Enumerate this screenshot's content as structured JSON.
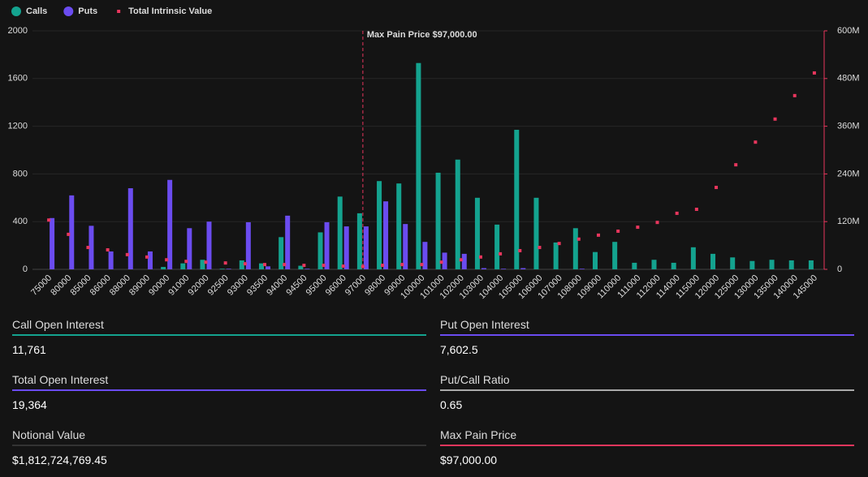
{
  "chart_data": {
    "type": "bar",
    "legend": "top-left",
    "grid": true,
    "categories": [
      "75000",
      "80000",
      "85000",
      "86000",
      "88000",
      "89000",
      "90000",
      "91000",
      "92000",
      "92500",
      "93000",
      "93500",
      "94000",
      "94500",
      "95000",
      "96000",
      "97000",
      "98000",
      "99000",
      "100000",
      "101000",
      "102000",
      "103000",
      "104000",
      "105000",
      "106000",
      "107000",
      "108000",
      "109000",
      "110000",
      "111000",
      "112000",
      "114000",
      "115000",
      "120000",
      "125000",
      "130000",
      "135000",
      "140000",
      "145000"
    ],
    "series": [
      {
        "name": "Calls",
        "color": "#14a38f",
        "values": [
          0,
          0,
          0,
          0,
          0,
          0,
          20,
          50,
          80,
          5,
          75,
          50,
          270,
          30,
          310,
          610,
          470,
          740,
          720,
          1730,
          810,
          920,
          600,
          375,
          1170,
          600,
          225,
          345,
          145,
          230,
          55,
          80,
          55,
          185,
          130,
          100,
          70,
          80,
          75,
          75
        ]
      },
      {
        "name": "Puts",
        "color": "#6b4cf0",
        "values": [
          430,
          620,
          365,
          150,
          680,
          150,
          750,
          345,
          400,
          5,
          395,
          25,
          450,
          5,
          395,
          360,
          360,
          570,
          380,
          230,
          140,
          130,
          10,
          5,
          10,
          0,
          0,
          5,
          0,
          0,
          0,
          0,
          0,
          0,
          0,
          0,
          0,
          0,
          0,
          0
        ]
      },
      {
        "name": "Total Intrinsic Value",
        "color": "#e8365d",
        "type": "scatter",
        "axis": "y2",
        "values": [
          124,
          88,
          55,
          49,
          37,
          31,
          24,
          20,
          18,
          16,
          14,
          12,
          12,
          10,
          10,
          8,
          7,
          10,
          12,
          12,
          18,
          24,
          31,
          39,
          47,
          55,
          65,
          76,
          86,
          96,
          106,
          118,
          141,
          151,
          206,
          263,
          320,
          378,
          437,
          494
        ]
      }
    ],
    "ylim": [
      0,
      2000
    ],
    "yticks": [
      0,
      400,
      800,
      1200,
      1600,
      2000
    ],
    "y2lim": [
      0,
      600
    ],
    "y2ticks": [
      0,
      {
        "value": 120,
        "label": "120M"
      },
      {
        "value": 240,
        "label": "240M"
      },
      {
        "value": 360,
        "label": "360M"
      },
      {
        "value": 480,
        "label": "480M"
      },
      {
        "value": 600,
        "label": "600M"
      }
    ],
    "annotation": {
      "text": "Max Pain Price $97,000.00",
      "x": "97000",
      "color": "#e8365d"
    }
  },
  "stats": [
    {
      "label": "Call Open Interest",
      "value": "11,761",
      "color": "#14a38f"
    },
    {
      "label": "Put Open Interest",
      "value": "7,602.5",
      "color": "#6b4cf0"
    },
    {
      "label": "Total Open Interest",
      "value": "19,364",
      "color": "#6b4cf0"
    },
    {
      "label": "Put/Call Ratio",
      "value": "0.65",
      "color": "#aaaaaa"
    },
    {
      "label": "Notional Value",
      "value": "$1,812,724,769.45",
      "color": "#333333"
    },
    {
      "label": "Max Pain Price",
      "value": "$97,000.00",
      "color": "#e8365d"
    }
  ]
}
